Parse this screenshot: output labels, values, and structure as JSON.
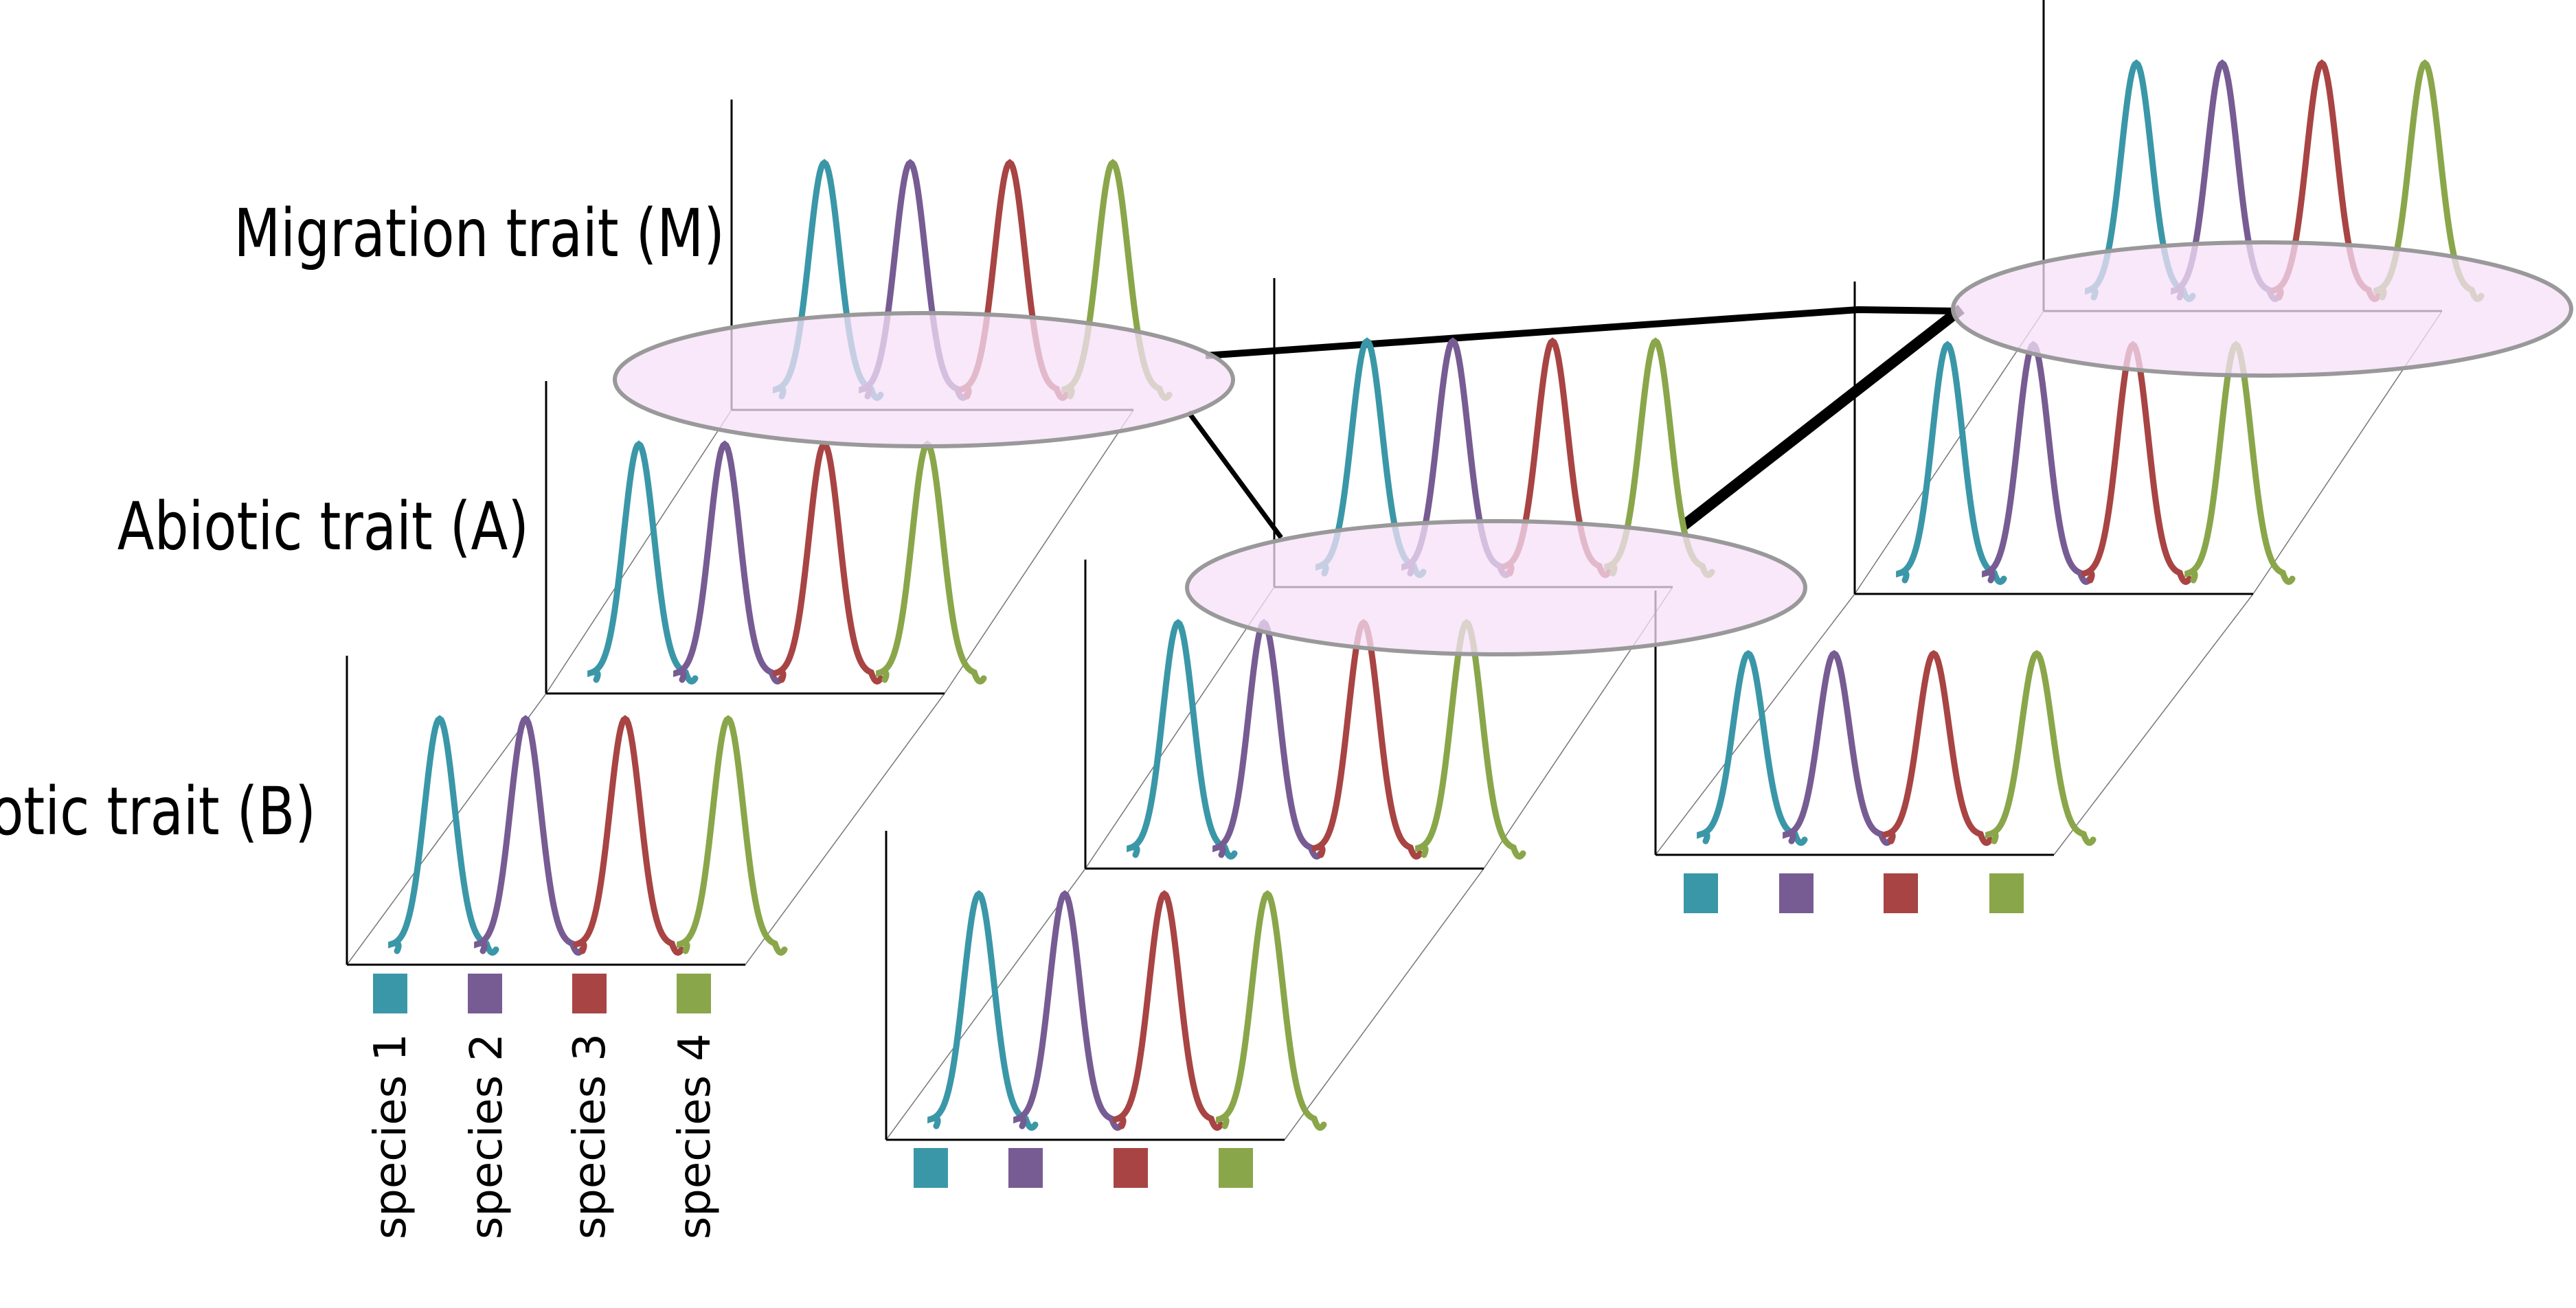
{
  "trait_labels": {
    "migration": "Migration trait (M)",
    "abiotic": "Abiotic trait (A)",
    "biotic": "Biotic trait (B)"
  },
  "species": [
    {
      "label": "species 1",
      "color": "#3a97a8"
    },
    {
      "label": "species 2",
      "color": "#765c93"
    },
    {
      "label": "species 3",
      "color": "#a84443"
    },
    {
      "label": "species 4",
      "color": "#8aa64a"
    }
  ],
  "habitat_colors": {
    "fill": "#f5e0f8",
    "stroke": "#999999"
  },
  "axis_color": "#000000",
  "perspective_line_color": "#777777"
}
